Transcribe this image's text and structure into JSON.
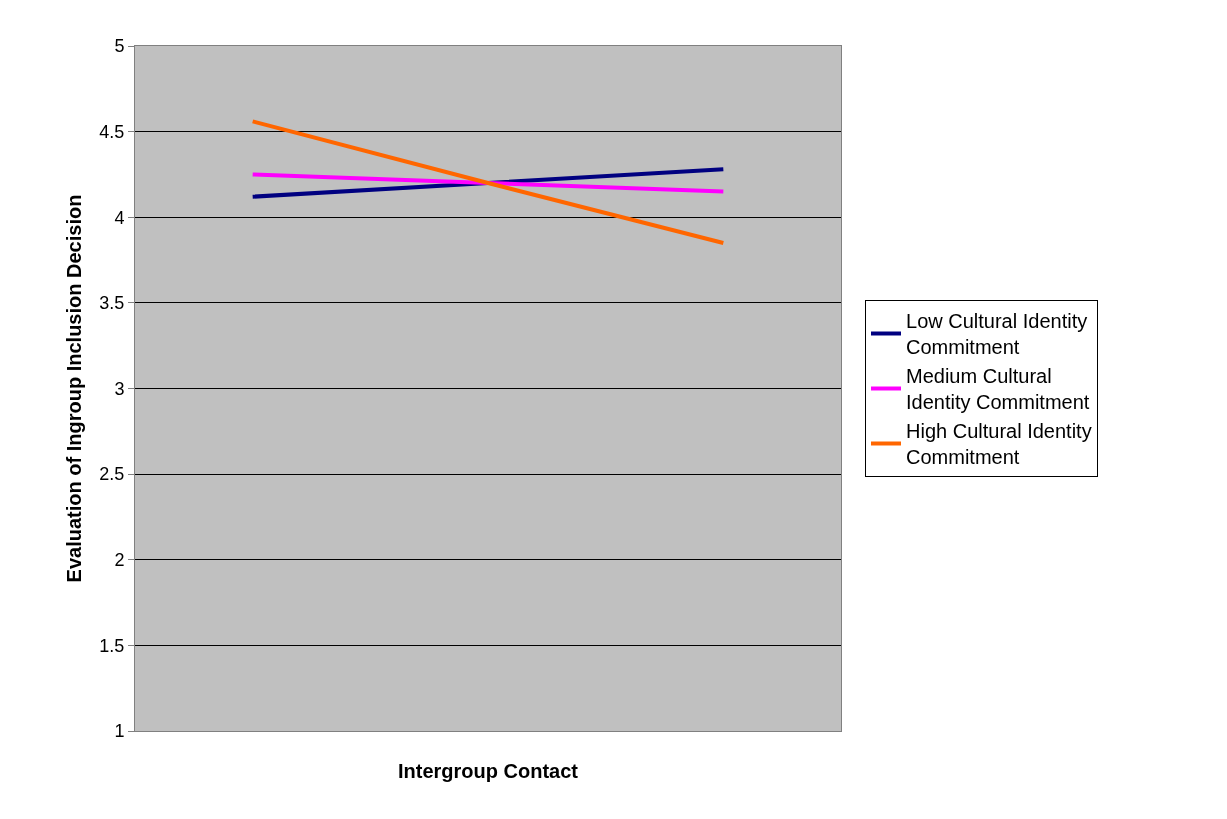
{
  "chart_data": {
    "type": "line",
    "xlabel": "Intergroup Contact",
    "ylabel": "Evaluation of Ingroup Inclusion Decision",
    "categories": [
      null,
      null,
      null
    ],
    "series": [
      {
        "name": "Low Cultural Identity Commitment",
        "color": "#000080",
        "values": [
          4.12,
          4.2,
          4.28
        ]
      },
      {
        "name": "Medium Cultural Identity Commitment",
        "color": "#ff00ff",
        "values": [
          4.25,
          4.2,
          4.15
        ]
      },
      {
        "name": "High Cultural Identity Commitment",
        "color": "#ff6600",
        "values": [
          4.56,
          4.2,
          3.85
        ]
      }
    ],
    "ylim": [
      1,
      5
    ],
    "yticks": [
      1,
      1.5,
      2,
      2.5,
      3,
      3.5,
      4,
      4.5,
      5
    ],
    "grid": "y",
    "legend": "right",
    "marker": "none",
    "line_style": "solid"
  }
}
